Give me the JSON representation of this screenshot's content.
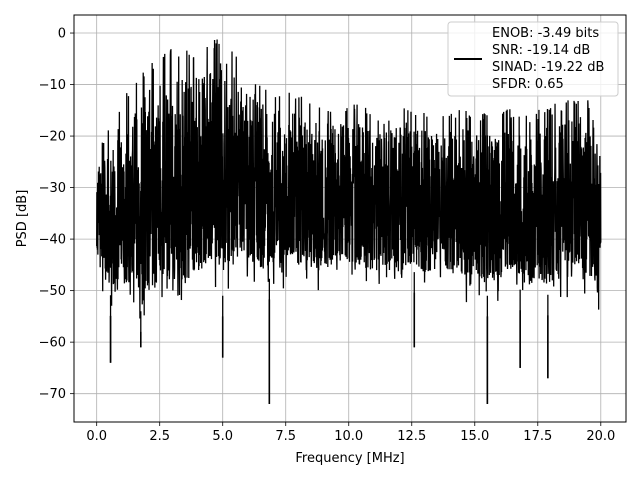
{
  "chart_data": {
    "type": "line",
    "title": "",
    "xlabel": "Frequency [MHz]",
    "ylabel": "PSD [dB]",
    "xlim": [
      -0.9,
      21.0
    ],
    "ylim": [
      -75.5,
      3.5
    ],
    "xticks": [
      0.0,
      2.5,
      5.0,
      7.5,
      10.0,
      12.5,
      15.0,
      17.5,
      20.0
    ],
    "xtick_labels": [
      "0.0",
      "2.5",
      "5.0",
      "7.5",
      "10.0",
      "12.5",
      "15.0",
      "17.5",
      "20.0"
    ],
    "yticks": [
      0,
      -10,
      -20,
      -30,
      -40,
      -50,
      -60,
      -70
    ],
    "ytick_labels": [
      "0",
      "−10",
      "−20",
      "−30",
      "−40",
      "−50",
      "−60",
      "−70"
    ],
    "grid": true,
    "legend_position": "top-right",
    "series": [
      {
        "name": "ENOB: -3.49 bits\nSNR: -19.14 dB\nSINAD: -19.22 dB\nSFDR: 0.65",
        "color": "#000000",
        "envelope_x": [
          0.0,
          0.5,
          1.0,
          1.5,
          2.0,
          2.5,
          3.0,
          3.5,
          4.0,
          4.5,
          5.0,
          5.5,
          6.0,
          6.5,
          7.0,
          7.5,
          8.0,
          8.5,
          9.0,
          9.5,
          10.0,
          10.5,
          11.0,
          11.5,
          12.0,
          12.5,
          13.0,
          13.5,
          14.0,
          14.5,
          15.0,
          15.5,
          16.0,
          16.5,
          17.0,
          17.5,
          18.0,
          18.5,
          19.0,
          19.5,
          20.0
        ],
        "envelope_max": [
          -23,
          -18,
          -13,
          -9,
          -6,
          -4,
          -3,
          -3,
          -3,
          -2,
          0,
          -4,
          -7,
          -9,
          -11,
          -11,
          -12,
          -13,
          -13,
          -14,
          -13,
          -14,
          -15,
          -16,
          -13,
          -14,
          -15,
          -16,
          -15,
          -14,
          -16,
          -15,
          -14,
          -15,
          -16,
          -15,
          -14,
          -13,
          -12,
          -12,
          -24
        ],
        "envelope_min": [
          -48,
          -55,
          -54,
          -56,
          -60,
          -57,
          -55,
          -56,
          -55,
          -52,
          -55,
          -52,
          -50,
          -51,
          -52,
          -50,
          -51,
          -50,
          -52,
          -50,
          -50,
          -51,
          -52,
          -51,
          -53,
          -50,
          -52,
          -51,
          -52,
          -54,
          -52,
          -55,
          -53,
          -52,
          -55,
          -54,
          -55,
          -53,
          -52,
          -54,
          -55
        ],
        "spikes": [
          {
            "x": 0.55,
            "y": -64
          },
          {
            "x": 1.75,
            "y": -61
          },
          {
            "x": 5.0,
            "y": -63
          },
          {
            "x": 6.85,
            "y": -72
          },
          {
            "x": 12.6,
            "y": -61
          },
          {
            "x": 15.5,
            "y": -72
          },
          {
            "x": 16.8,
            "y": -65
          },
          {
            "x": 17.9,
            "y": -67
          }
        ]
      }
    ],
    "legend_lines": [
      "ENOB: -3.49 bits",
      "SNR: -19.14 dB",
      "SINAD: -19.22 dB",
      "SFDR: 0.65"
    ]
  }
}
